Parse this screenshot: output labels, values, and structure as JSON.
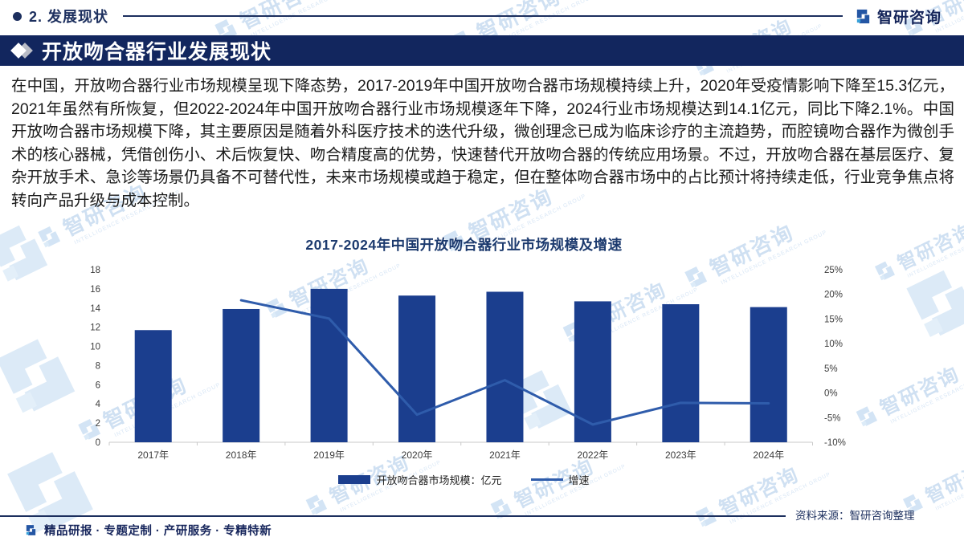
{
  "header": {
    "section_label": "2. 发展现状",
    "logo_text": "智研咨询"
  },
  "title_bar": {
    "title": "开放吻合器行业发展现状"
  },
  "body_text": "在中国，开放吻合器行业市场规模呈现下降态势，2017-2019年中国开放吻合器市场规模持续上升，2020年受疫情影响下降至15.3亿元，2021年虽然有所恢复，但2022-2024年中国开放吻合器行业市场规模逐年下降，2024行业市场规模达到14.1亿元，同比下降2.1%。中国开放吻合器市场规模下降，其主要原因是随着外科医疗技术的迭代升级，微创理念已成为临床诊疗的主流趋势，而腔镜吻合器作为微创手术的核心器械，凭借创伤小、术后恢复快、吻合精度高的优势，快速替代开放吻合器的传统应用场景。不过，开放吻合器在基层医疗、复杂开放手术、急诊等场景仍具备不可替代性，未来市场规模或趋于稳定，但在整体吻合器市场中的占比预计将持续走低，行业竞争焦点将转向产品升级与成本控制。",
  "chart_data": {
    "type": "bar",
    "title": "2017-2024年中国开放吻合器行业市场规模及增速",
    "categories": [
      "2017年",
      "2018年",
      "2019年",
      "2020年",
      "2021年",
      "2022年",
      "2023年",
      "2024年"
    ],
    "series": [
      {
        "name": "开放吻合器市场规模：亿元",
        "type": "bar",
        "axis": "left",
        "color": "#1b3e8e",
        "values": [
          11.7,
          13.9,
          16.0,
          15.3,
          15.7,
          14.7,
          14.4,
          14.1
        ]
      },
      {
        "name": "增速",
        "type": "line",
        "axis": "right",
        "color": "#2f5cab",
        "values": [
          null,
          18.8,
          15.1,
          -4.4,
          2.6,
          -6.4,
          -2.0,
          -2.1
        ]
      }
    ],
    "left_axis": {
      "min": 0,
      "max": 18,
      "step": 2,
      "suffix": ""
    },
    "right_axis": {
      "min": -10,
      "max": 25,
      "step": 5,
      "suffix": "%"
    },
    "grid": false,
    "legend_position": "bottom"
  },
  "source": {
    "label": "资料来源：智研咨询整理"
  },
  "footer": {
    "text": "精品研报 · 专题定制 · 产研服务 · 专精特新"
  },
  "watermark": {
    "text": "智研咨询",
    "subtext": "INTELLIGENCE RESEARCH GROUP"
  },
  "colors": {
    "title_bar_bg": "#12265e",
    "accent_navy": "#1c2f5e",
    "bar": "#1b3e8e",
    "line": "#2f5cab",
    "watermark": "#cfe0f2"
  }
}
